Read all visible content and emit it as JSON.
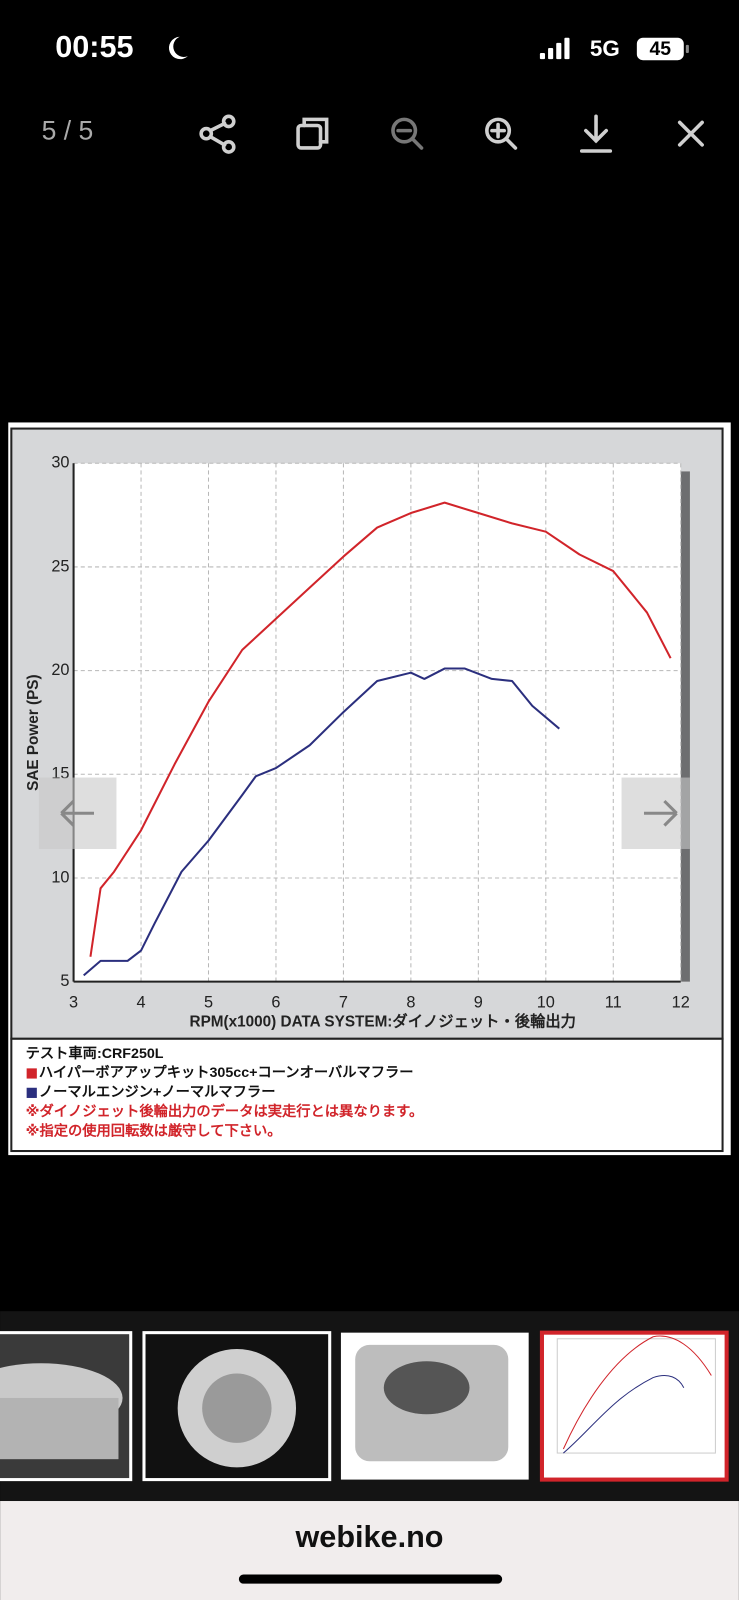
{
  "status_bar": {
    "time": "00:55",
    "network": "5G",
    "battery": "45"
  },
  "toolbar": {
    "counter": "5 / 5"
  },
  "chart_data": {
    "type": "line",
    "xlabel": "RPM(x1000) DATA SYSTEM:ダイノジェット・後輪出力",
    "ylabel": "SAE Power (PS)",
    "xlim": [
      3,
      12
    ],
    "ylim": [
      5,
      30
    ],
    "xticks": [
      3,
      4,
      5,
      6,
      7,
      8,
      9,
      10,
      11,
      12
    ],
    "yticks": [
      5,
      10,
      15,
      20,
      25,
      30
    ],
    "grid": true,
    "caption": "テスト車両:CRF250L",
    "series": [
      {
        "name": "ハイパーボアアップキット305cc+コーンオーバルマフラー",
        "color": "#d1242a",
        "x": [
          3.25,
          3.4,
          3.6,
          4,
          4.5,
          5,
          5.5,
          6,
          6.5,
          7,
          7.5,
          8,
          8.5,
          9,
          9.5,
          10,
          10.5,
          11,
          11.5,
          11.85
        ],
        "values": [
          6.2,
          9.5,
          10.3,
          12.3,
          15.5,
          18.5,
          21,
          22.5,
          24,
          25.5,
          26.9,
          27.6,
          28.1,
          27.6,
          27.1,
          26.7,
          25.6,
          24.8,
          22.8,
          20.6
        ]
      },
      {
        "name": "ノーマルエンジン+ノーマルマフラー",
        "color": "#2b2f7e",
        "x": [
          3.15,
          3.4,
          3.8,
          4,
          4.2,
          4.6,
          5,
          5.5,
          5.7,
          6,
          6.5,
          7,
          7.5,
          8,
          8.2,
          8.5,
          8.8,
          9.2,
          9.5,
          9.8,
          10.2
        ],
        "values": [
          5.3,
          6,
          6,
          6.5,
          7.8,
          10.3,
          11.8,
          14,
          14.9,
          15.3,
          16.4,
          18,
          19.5,
          19.9,
          19.6,
          20.1,
          20.1,
          19.6,
          19.5,
          18.3,
          17.2
        ]
      }
    ],
    "notes": [
      "※ダイノジェット後輪出力のデータは実走行とは異なります。",
      "※指定の使用回転数は厳守して下さい。"
    ]
  },
  "footer": {
    "url": "webike.no"
  }
}
